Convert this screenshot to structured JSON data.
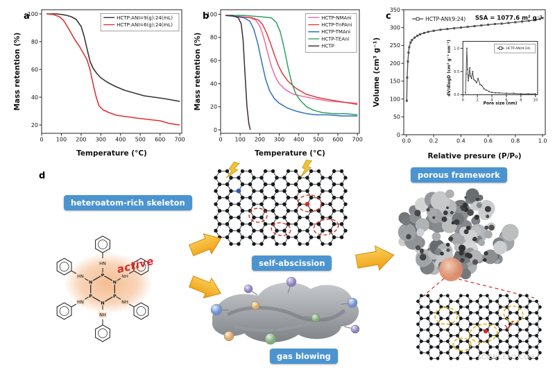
{
  "figure": {
    "watermark": "SCIENCEAQ.COM"
  },
  "panels": {
    "a": "a",
    "b": "b",
    "c": "c",
    "d": "d"
  },
  "diagram": {
    "skeleton_label": "heteroatom-rich skeleton",
    "self_abscission_label": "self-abscission",
    "gas_blowing_label": "gas blowing",
    "porous_framework_label": "porous framework",
    "active_label": "active",
    "box_color": "#4b94d0",
    "active_color": "#d92b2b",
    "arrow_color": "#ef9d10",
    "arrow_color_light": "#fbd35e",
    "bolt_color": "#f2c335",
    "glow_color": "#f5b98a",
    "dashed_red": "#d23b2e",
    "dashed_yellow": "#e8b10c"
  },
  "chart_data": [
    {
      "id": "panel-a",
      "type": "line",
      "xlabel": "Temperature (°C)",
      "ylabel": "Mass retention (%)",
      "xlim": [
        0,
        710
      ],
      "ylim": [
        14,
        103
      ],
      "xticks": [
        0,
        100,
        200,
        300,
        400,
        500,
        600,
        700
      ],
      "yticks": [
        20,
        40,
        60,
        80,
        100
      ],
      "legend": {
        "fx": 0.98,
        "fy": 0.03,
        "anchor": "end",
        "box": true,
        "fs": 7
      },
      "series": [
        {
          "name": "HCTP:ANI=9(g):24(mL)",
          "color": "#333333",
          "width": 1.6,
          "x": [
            25,
            75,
            100,
            125,
            150,
            175,
            200,
            215,
            230,
            245,
            260,
            280,
            300,
            330,
            370,
            420,
            470,
            520,
            570,
            620,
            660,
            700
          ],
          "y": [
            100,
            100,
            99.6,
            99,
            98,
            96,
            91,
            84,
            75,
            66,
            61,
            57,
            54,
            51,
            48,
            45,
            43,
            41,
            40,
            39,
            38,
            37
          ]
        },
        {
          "name": "HCTP:ANI=6(g):24(mL)",
          "color": "#e03131",
          "width": 1.6,
          "x": [
            25,
            60,
            90,
            110,
            130,
            150,
            170,
            190,
            210,
            230,
            245,
            260,
            275,
            290,
            310,
            340,
            380,
            430,
            480,
            540,
            600,
            650,
            700
          ],
          "y": [
            100,
            99.5,
            98,
            95.5,
            91,
            86,
            81,
            77,
            72,
            67,
            60,
            50,
            41,
            34,
            31,
            29,
            27,
            26,
            25,
            24,
            23,
            21,
            20
          ]
        }
      ]
    },
    {
      "id": "panel-b",
      "type": "line",
      "xlabel": "Temperature (°C)",
      "ylabel": "Mass retention (%)",
      "xlim": [
        0,
        710
      ],
      "ylim": [
        -3,
        104
      ],
      "xticks": [
        0,
        100,
        200,
        300,
        400,
        500,
        600,
        700
      ],
      "yticks": [
        0,
        20,
        40,
        60,
        80,
        100
      ],
      "legend": {
        "fx": 0.98,
        "fy": 0.03,
        "anchor": "end",
        "box": true,
        "fs": 7
      },
      "series": [
        {
          "name": "HCTP-NMAni",
          "color": "#f0679e",
          "width": 1.5,
          "x": [
            25,
            100,
            150,
            180,
            200,
            215,
            230,
            245,
            260,
            280,
            300,
            330,
            370,
            420,
            480,
            550,
            620,
            700
          ],
          "y": [
            99,
            98,
            97,
            95,
            90,
            83,
            74,
            64,
            55,
            46,
            40,
            35,
            31,
            29,
            27,
            25,
            24,
            23
          ]
        },
        {
          "name": "HCTP-TnPAni",
          "color": "#e23a3a",
          "width": 1.5,
          "x": [
            25,
            100,
            160,
            195,
            215,
            235,
            255,
            275,
            295,
            315,
            345,
            385,
            435,
            495,
            560,
            630,
            700
          ],
          "y": [
            99,
            98,
            97,
            95,
            91,
            84,
            75,
            65,
            56,
            49,
            42,
            36,
            31,
            28,
            26,
            24,
            22
          ]
        },
        {
          "name": "HCTP-TMAni",
          "color": "#2b6fbe",
          "width": 1.5,
          "x": [
            25,
            80,
            120,
            150,
            170,
            190,
            210,
            230,
            250,
            275,
            300,
            340,
            390,
            440,
            490,
            550,
            620,
            700
          ],
          "y": [
            99,
            98,
            97,
            94,
            87,
            75,
            59,
            44,
            34,
            27,
            23,
            19,
            16,
            14,
            13,
            13,
            12,
            12
          ]
        },
        {
          "name": "HCTP-TEAni",
          "color": "#2e9e63",
          "width": 1.5,
          "x": [
            25,
            120,
            200,
            260,
            285,
            305,
            325,
            345,
            365,
            385,
            410,
            440,
            475,
            520,
            580,
            640,
            700
          ],
          "y": [
            99,
            99,
            98,
            97,
            93,
            85,
            71,
            54,
            40,
            31,
            25,
            20,
            17,
            15,
            14,
            14,
            13
          ]
        },
        {
          "name": "HCTP",
          "color": "#3a2a2a",
          "width": 1.5,
          "x": [
            25,
            60,
            90,
            105,
            115,
            125,
            135,
            145,
            152
          ],
          "y": [
            99,
            99,
            97,
            92,
            78,
            48,
            20,
            5,
            0
          ]
        }
      ]
    },
    {
      "id": "panel-c",
      "type": "line",
      "xlabel": "Relative presure (P/P₀)",
      "ylabel": "Volume (cm³ g⁻¹)",
      "xlim": [
        -0.02,
        1.02
      ],
      "ylim": [
        0,
        350
      ],
      "xticks": [
        0.0,
        0.2,
        0.4,
        0.6,
        0.8,
        1.0
      ],
      "xtick_labels": [
        "0.0",
        "0.2",
        "0.4",
        "0.6",
        "0.8",
        "1.0"
      ],
      "yticks": [
        0,
        50,
        100,
        150,
        200,
        250,
        300,
        350
      ],
      "legend": {
        "fx": 0.04,
        "fy": 0.04,
        "anchor": "start",
        "box": false,
        "fs": 7.5,
        "marker": "square"
      },
      "annotations": [
        {
          "text": "SSA = 1077.6 m² g⁻¹",
          "fx": 0.98,
          "fy": 0.08,
          "anchor": "end",
          "fs": 8.5,
          "bold": true
        }
      ],
      "series": [
        {
          "name": "HCTP-ANI(9:24)",
          "color": "#4d4d4d",
          "width": 1.3,
          "marker": "square",
          "msize": 3,
          "x": [
            0.002,
            0.005,
            0.01,
            0.015,
            0.02,
            0.03,
            0.04,
            0.06,
            0.08,
            0.1,
            0.13,
            0.16,
            0.2,
            0.25,
            0.3,
            0.35,
            0.4,
            0.45,
            0.5,
            0.55,
            0.6,
            0.65,
            0.7,
            0.75,
            0.8,
            0.85,
            0.9,
            0.95,
            0.98,
            1.0
          ],
          "y": [
            95,
            160,
            205,
            230,
            245,
            258,
            265,
            272,
            277,
            281,
            285,
            288,
            291,
            294,
            296,
            298,
            300,
            302,
            304,
            306,
            308,
            310,
            311,
            313,
            315,
            317,
            319,
            322,
            324,
            327
          ]
        }
      ],
      "inset": {
        "fx": 0.3,
        "fy": 0.22,
        "fw": 0.67,
        "fh": 0.56,
        "margins": {
          "l": 24,
          "r": 5,
          "t": 6,
          "b": 18
        },
        "xlabel": "Pore size (nm)",
        "ylabel": "dV/dlogD (cm³ g⁻¹ nm⁻¹)",
        "label_fs": 6,
        "tick_fs": 5,
        "ylabel_off": 6,
        "xlim": [
          0,
          10.3
        ],
        "ylim": [
          0,
          1.15
        ],
        "xticks": [
          0,
          2,
          4,
          6,
          8,
          10
        ],
        "yticks": [
          0.0,
          0.5,
          1.0
        ],
        "ytick_labels": [
          "0.0",
          "0.5",
          "1.0"
        ],
        "legend": {
          "fx": 0.97,
          "fy": 0.05,
          "anchor": "end",
          "box": true,
          "fs": 4.5,
          "ll": 10,
          "marker": "square"
        },
        "series": [
          {
            "name": "HCTP-ANI(9:24)",
            "color": "#4d4d4d",
            "width": 1,
            "marker": "square",
            "msize": 1.8,
            "x": [
              0.35,
              0.45,
              0.55,
              0.65,
              0.75,
              0.85,
              0.95,
              1.05,
              1.2,
              1.35,
              1.5,
              1.7,
              1.9,
              2.1,
              2.35,
              2.6,
              2.9,
              3.2,
              3.6,
              4.0,
              4.5,
              5.0,
              6.0,
              7.0,
              8.0,
              9.0,
              10.0
            ],
            "y": [
              0.04,
              0.45,
              1.0,
              0.55,
              0.3,
              0.42,
              0.58,
              0.4,
              0.35,
              0.5,
              0.33,
              0.3,
              0.26,
              0.35,
              0.22,
              0.2,
              0.13,
              0.1,
              0.07,
              0.05,
              0.04,
              0.04,
              0.03,
              0.03,
              0.02,
              0.02,
              0.02
            ]
          }
        ]
      }
    }
  ]
}
